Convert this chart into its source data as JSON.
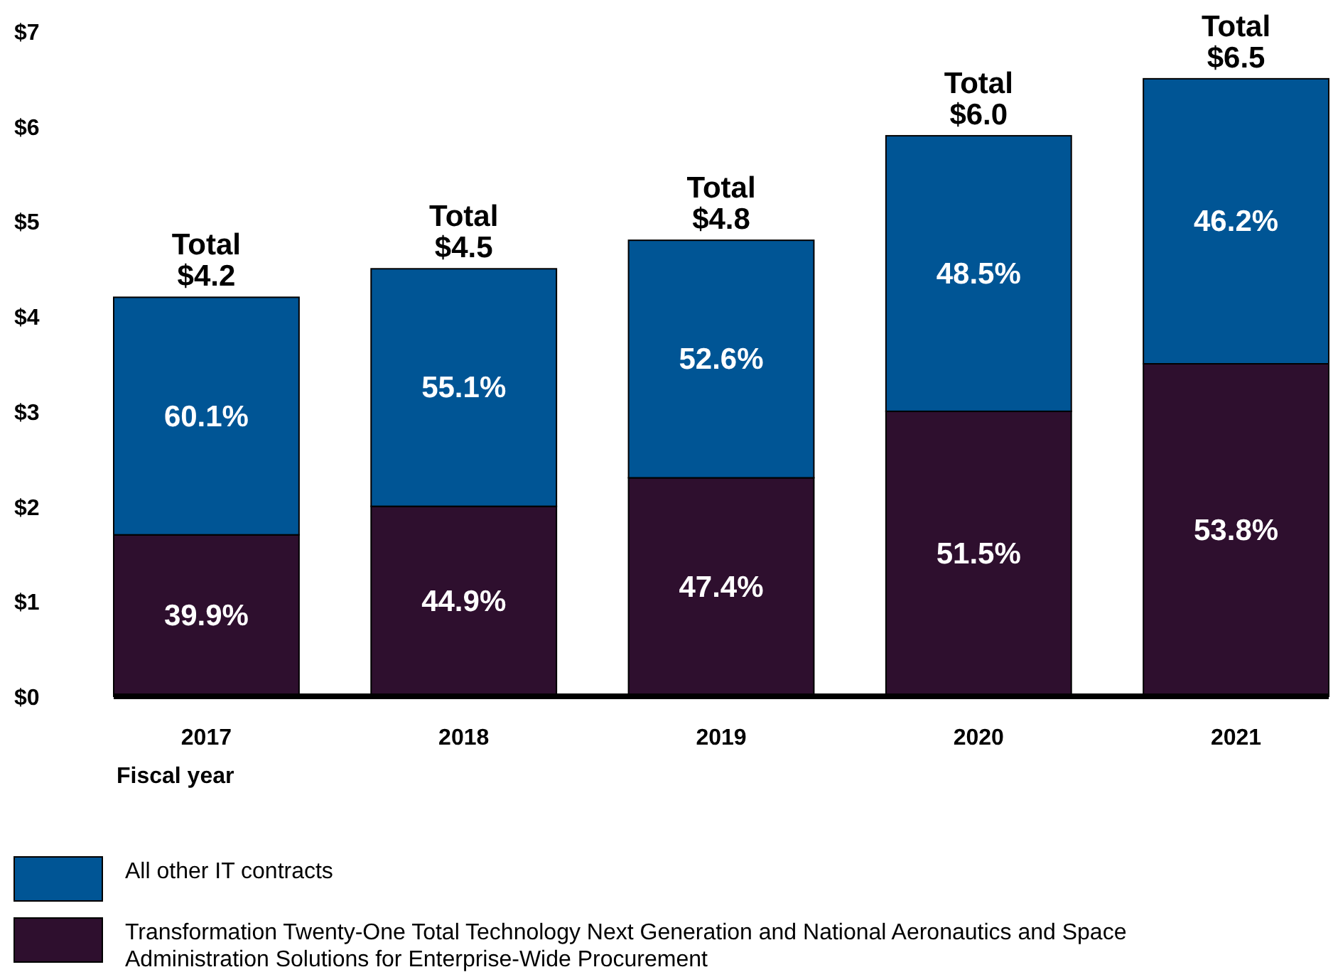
{
  "chart_data": {
    "type": "bar",
    "stacked": true,
    "xlabel": "Fiscal year",
    "categories": [
      "2017",
      "2018",
      "2019",
      "2020",
      "2021"
    ],
    "ylim": [
      0,
      7
    ],
    "yticks": [
      {
        "value": 0,
        "label": "$0"
      },
      {
        "value": 1,
        "label": "$1"
      },
      {
        "value": 2,
        "label": "$2"
      },
      {
        "value": 3,
        "label": "$3"
      },
      {
        "value": 4,
        "label": "$4"
      },
      {
        "value": 5,
        "label": "$5"
      },
      {
        "value": 6,
        "label": "$6"
      },
      {
        "value": 7,
        "label": "$7"
      }
    ],
    "series": [
      {
        "name": "Transformation Twenty-One Total Technology Next Generation and National Aeronautics and Space Administration Solutions for Enterprise-Wide Procurement",
        "color": "#2e0f2e",
        "values": [
          1.7,
          2.0,
          2.3,
          3.0,
          3.5
        ]
      },
      {
        "name": "All other IT contracts",
        "color": "#005595",
        "values": [
          2.5,
          2.5,
          2.5,
          2.9,
          3.0
        ]
      }
    ],
    "annotations": [
      "39.9%",
      "60.1%",
      "44.9%",
      "55.1%",
      "47.4%",
      "52.6%",
      "51.5%",
      "48.5%",
      "53.8%",
      "46.2%"
    ],
    "totals": [
      "Total $4.2",
      "Total $4.5",
      "Total $4.8",
      "Total $6.0",
      "Total $6.5"
    ],
    "grid": false,
    "legend": "bottom"
  }
}
